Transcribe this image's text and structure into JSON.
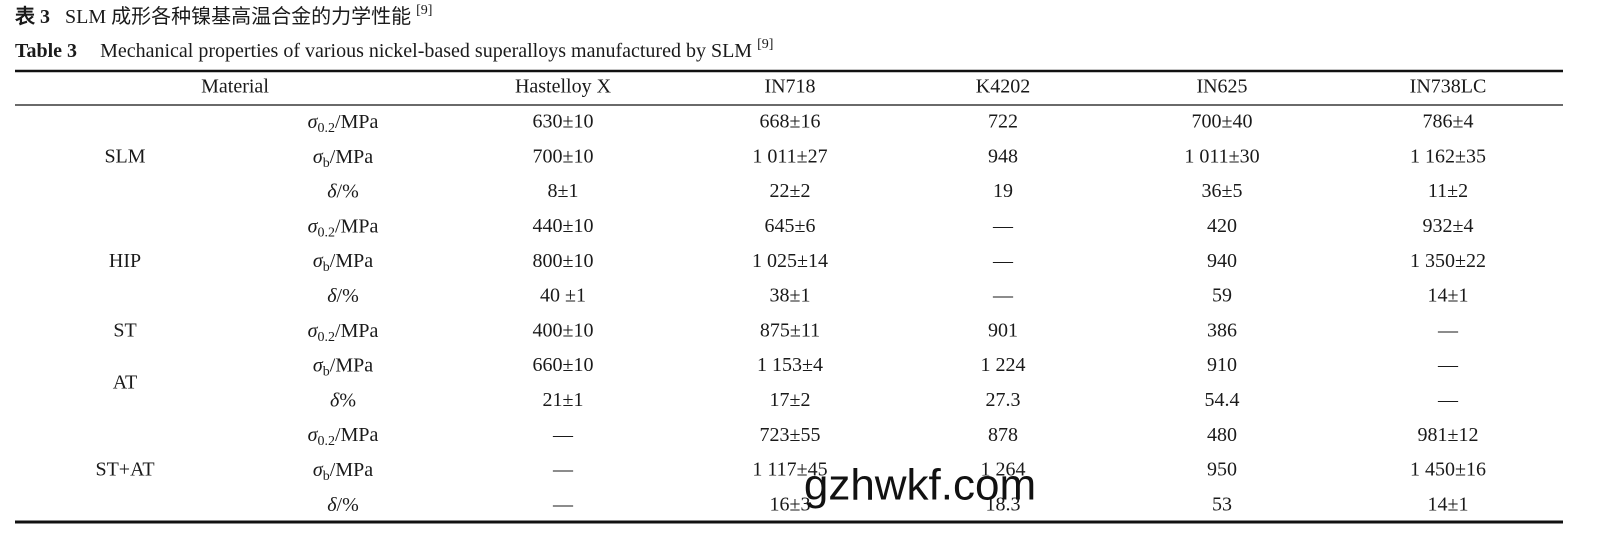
{
  "caption": {
    "cn_label": "表 3",
    "cn_text": "SLM 成形各种镍基高温合金的力学性能",
    "cn_ref": "[9]",
    "en_label": "Table 3",
    "en_text": "Mechanical properties of various nickel-based superalloys manufactured by SLM",
    "en_ref": "[9]"
  },
  "table": {
    "header": [
      "Material",
      "Hastelloy X",
      "IN718",
      "K4202",
      "IN625",
      "IN738LC"
    ],
    "groups": [
      {
        "labels": [
          "SLM"
        ],
        "rows": [
          {
            "property": {
              "symbol": "σ",
              "sub": "0.2",
              "unit": "/MPa"
            },
            "values": [
              "630±10",
              "668±16",
              "722",
              "700±40",
              "786±4"
            ]
          },
          {
            "property": {
              "symbol": "σ",
              "sub": "b",
              "unit": "/MPa"
            },
            "values": [
              "700±10",
              "1 011±27",
              "948",
              "1 011±30",
              "1 162±35"
            ]
          },
          {
            "property": {
              "symbol": "δ",
              "unit": "/%"
            },
            "values": [
              "8±1",
              "22±2",
              "19",
              "36±5",
              "11±2"
            ]
          }
        ]
      },
      {
        "labels": [
          "HIP"
        ],
        "rows": [
          {
            "property": {
              "symbol": "σ",
              "sub": "0.2",
              "unit": "/MPa"
            },
            "values": [
              "440±10",
              "645±6",
              "—",
              "420",
              "932±4"
            ]
          },
          {
            "property": {
              "symbol": "σ",
              "sub": "b",
              "unit": "/MPa"
            },
            "values": [
              "800±10",
              "1 025±14",
              "—",
              "940",
              "1 350±22"
            ]
          },
          {
            "property": {
              "symbol": "δ",
              "unit": "/%"
            },
            "values": [
              "40 ±1",
              "38±1",
              "—",
              "59",
              "14±1"
            ]
          }
        ]
      },
      {
        "labels": [
          "ST",
          "AT"
        ],
        "rows": [
          {
            "property": {
              "symbol": "σ",
              "sub": "0.2",
              "unit": "/MPa"
            },
            "values": [
              "400±10",
              "875±11",
              "901",
              "386",
              "—"
            ]
          },
          {
            "property": {
              "symbol": "σ",
              "sub": "b",
              "unit": "/MPa"
            },
            "values": [
              "660±10",
              "1 153±4",
              "1 224",
              "910",
              "—"
            ]
          },
          {
            "property": {
              "symbol": "δ",
              "unit": "%"
            },
            "values": [
              "21±1",
              "17±2",
              "27.3",
              "54.4",
              "—"
            ]
          }
        ]
      },
      {
        "labels": [
          "ST+AT"
        ],
        "rows": [
          {
            "property": {
              "symbol": "σ",
              "sub": "0.2",
              "unit": "/MPa"
            },
            "values": [
              "—",
              "723±55",
              "878",
              "480",
              "981±12"
            ]
          },
          {
            "property": {
              "symbol": "σ",
              "sub": "b",
              "unit": "/MPa"
            },
            "values": [
              "—",
              "1 117±45",
              "1 264",
              "950",
              "1 450±16"
            ]
          },
          {
            "property": {
              "symbol": "δ",
              "unit": "/%"
            },
            "values": [
              "—",
              "16±3",
              "18.3",
              "53",
              "14±1"
            ]
          }
        ]
      }
    ]
  },
  "watermark": "gzhwkf.com"
}
